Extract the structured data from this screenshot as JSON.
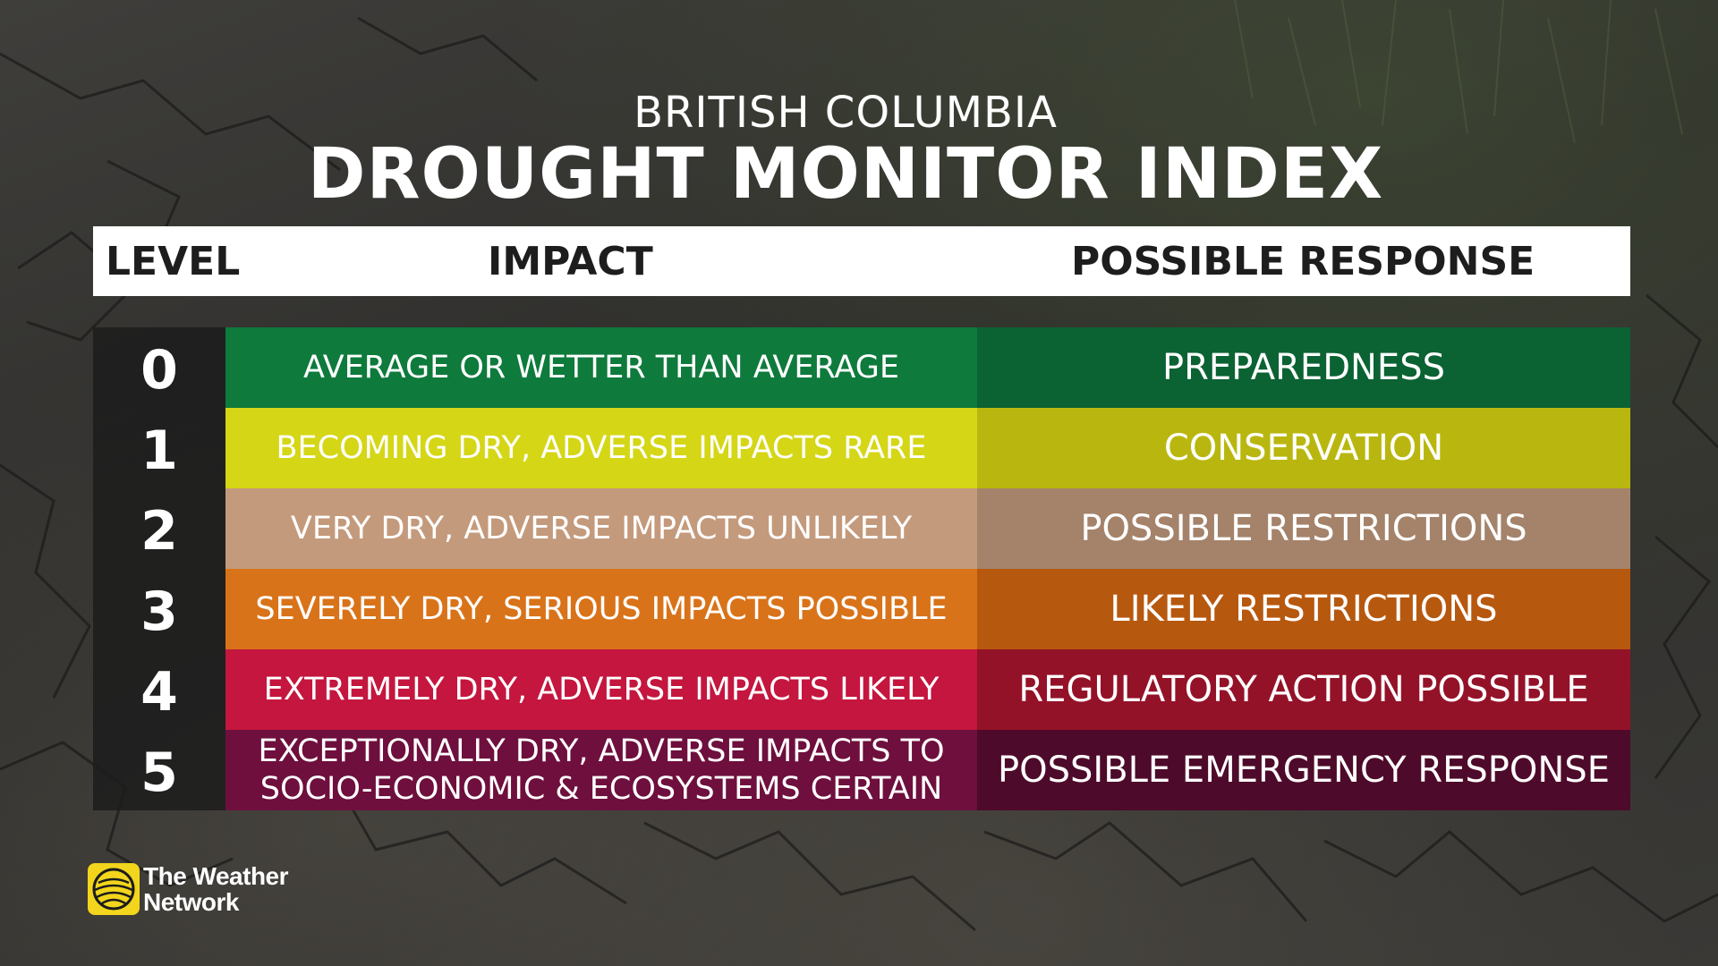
{
  "title": {
    "region": "BRITISH COLUMBIA",
    "main": "DROUGHT MONITOR INDEX"
  },
  "headers": {
    "level": "LEVEL",
    "impact": "IMPACT",
    "response": "POSSIBLE RESPONSE"
  },
  "rows": [
    {
      "level": "0",
      "impact": "AVERAGE OR WETTER THAN AVERAGE",
      "response": "PREPAREDNESS",
      "impact_color": "#0e7a3c",
      "response_color": "#0b6233"
    },
    {
      "level": "1",
      "impact": "BECOMING DRY, ADVERSE IMPACTS RARE",
      "response": "CONSERVATION",
      "impact_color": "#d5d616",
      "response_color": "#b9b70f"
    },
    {
      "level": "2",
      "impact": "VERY DRY, ADVERSE IMPACTS UNLIKELY",
      "response": "POSSIBLE RESTRICTIONS",
      "impact_color": "#c49a7c",
      "response_color": "#a4836a"
    },
    {
      "level": "3",
      "impact": "SEVERELY DRY, SERIOUS IMPACTS POSSIBLE",
      "response": "LIKELY RESTRICTIONS",
      "impact_color": "#d97319",
      "response_color": "#b7580f"
    },
    {
      "level": "4",
      "impact": "EXTREMELY DRY, ADVERSE IMPACTS LIKELY",
      "response": "REGULATORY ACTION POSSIBLE",
      "impact_color": "#c4163e",
      "response_color": "#941228"
    },
    {
      "level": "5",
      "impact": "EXCEPTIONALLY DRY, ADVERSE IMPACTS TO SOCIO-ECONOMIC & ECOSYSTEMS CERTAIN",
      "response": "POSSIBLE EMERGENCY RESPONSE",
      "impact_color": "#6e0f3d",
      "response_color": "#4e0a2a"
    }
  ],
  "logo": {
    "line1": "The Weather",
    "line2": "Network",
    "color": "#f2d51c",
    "icon": "weather-network-globe-icon"
  }
}
